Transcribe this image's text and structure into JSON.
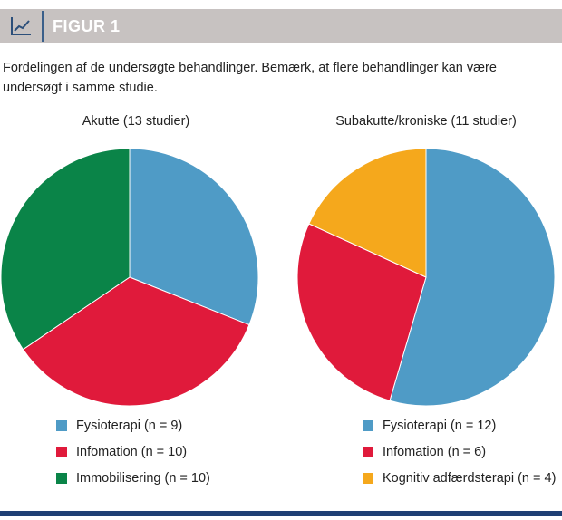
{
  "header": {
    "label": "FIGUR 1",
    "icon": "line-chart-icon"
  },
  "caption": "Fordelingen af de undersøgte behandlinger. Bemærk, at flere behandlinger kan være undersøgt i samme studie.",
  "colors": {
    "header_bg": "#c7c2c1",
    "accent_blue": "#1f3f74",
    "fysioterapi": "#4f9bc6",
    "infomation": "#e01a3b",
    "immobilisering": "#0a8448",
    "kognitiv": "#f5a81c"
  },
  "chart_data": [
    {
      "type": "pie",
      "title": "Akutte (13 studier)",
      "slices": [
        {
          "label": "Fysioterapi (n = 9)",
          "value": 9,
          "color": "#4f9bc6"
        },
        {
          "label": "Infomation (n = 10)",
          "value": 10,
          "color": "#e01a3b"
        },
        {
          "label": "Immobilisering (n = 10)",
          "value": 10,
          "color": "#0a8448"
        }
      ],
      "legend_placement": "bottom"
    },
    {
      "type": "pie",
      "title": "Subakutte/kroniske  (11 studier)",
      "slices": [
        {
          "label": "Fysioterapi (n = 12)",
          "value": 12,
          "color": "#4f9bc6"
        },
        {
          "label": "Infomation (n = 6)",
          "value": 6,
          "color": "#e01a3b"
        },
        {
          "label": "Kognitiv adfærdsterapi (n = 4)",
          "value": 4,
          "color": "#f5a81c"
        }
      ],
      "legend_placement": "bottom"
    }
  ]
}
